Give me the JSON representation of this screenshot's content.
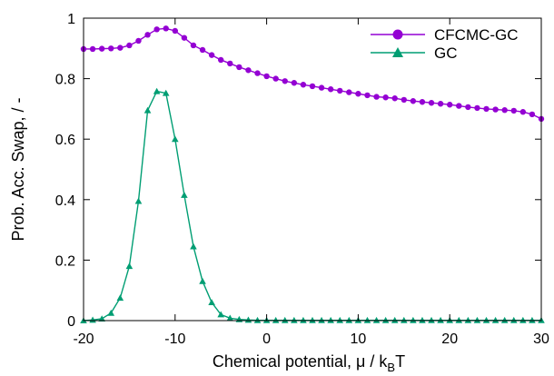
{
  "chart_data": {
    "type": "line",
    "title": "",
    "xlabel": "Chemical potential, μ / k",
    "xlabel_sub": "B",
    "xlabel_tail": "T",
    "ylabel": "Prob. Acc. Swap, / -",
    "xlim": [
      -20,
      30
    ],
    "ylim": [
      0,
      1
    ],
    "xticks": [
      "-20",
      "-10",
      "0",
      "10",
      "20",
      "30"
    ],
    "yticks": [
      "0",
      "0.2",
      "0.4",
      "0.6",
      "0.8",
      "1"
    ],
    "grid": false,
    "legend_position": "top-right",
    "series": [
      {
        "name": "CFCMC-GC",
        "color": "#9400d3",
        "marker": "circle",
        "x": [
          -20,
          -19,
          -18,
          -17,
          -16,
          -15,
          -14,
          -13,
          -12,
          -11,
          -10,
          -9,
          -8,
          -7,
          -6,
          -5,
          -4,
          -3,
          -2,
          -1,
          0,
          1,
          2,
          3,
          4,
          5,
          6,
          7,
          8,
          9,
          10,
          11,
          12,
          13,
          14,
          15,
          16,
          17,
          18,
          19,
          20,
          21,
          22,
          23,
          24,
          25,
          26,
          27,
          28,
          29,
          30
        ],
        "y": [
          0.898,
          0.898,
          0.899,
          0.9,
          0.902,
          0.91,
          0.925,
          0.945,
          0.963,
          0.966,
          0.958,
          0.935,
          0.91,
          0.895,
          0.878,
          0.862,
          0.85,
          0.838,
          0.828,
          0.818,
          0.808,
          0.8,
          0.792,
          0.786,
          0.78,
          0.775,
          0.77,
          0.765,
          0.76,
          0.755,
          0.75,
          0.745,
          0.74,
          0.738,
          0.735,
          0.73,
          0.726,
          0.723,
          0.72,
          0.717,
          0.714,
          0.71,
          0.706,
          0.703,
          0.7,
          0.698,
          0.696,
          0.694,
          0.69,
          0.682,
          0.667
        ]
      },
      {
        "name": "GC",
        "color": "#009e73",
        "marker": "triangle",
        "x": [
          -20,
          -19,
          -18,
          -17,
          -16,
          -15,
          -14,
          -13,
          -12,
          -11,
          -10,
          -9,
          -8,
          -7,
          -6,
          -5,
          -4,
          -3,
          -2,
          -1,
          0,
          1,
          2,
          3,
          4,
          5,
          6,
          7,
          8,
          9,
          10,
          11,
          12,
          13,
          14,
          15,
          16,
          17,
          18,
          19,
          20,
          21,
          22,
          23,
          24,
          25,
          26,
          27,
          28,
          29,
          30
        ],
        "y": [
          0.0,
          0.002,
          0.006,
          0.025,
          0.075,
          0.18,
          0.395,
          0.695,
          0.758,
          0.752,
          0.6,
          0.415,
          0.245,
          0.13,
          0.06,
          0.02,
          0.008,
          0.004,
          0.002,
          0.001,
          0.001,
          0.001,
          0.001,
          0.001,
          0.001,
          0.001,
          0.001,
          0.001,
          0.001,
          0.001,
          0.001,
          0.001,
          0.001,
          0.001,
          0.001,
          0.001,
          0.001,
          0.001,
          0.001,
          0.001,
          0.001,
          0.001,
          0.001,
          0.001,
          0.001,
          0.001,
          0.001,
          0.001,
          0.001,
          0.001,
          0.001
        ]
      }
    ]
  }
}
